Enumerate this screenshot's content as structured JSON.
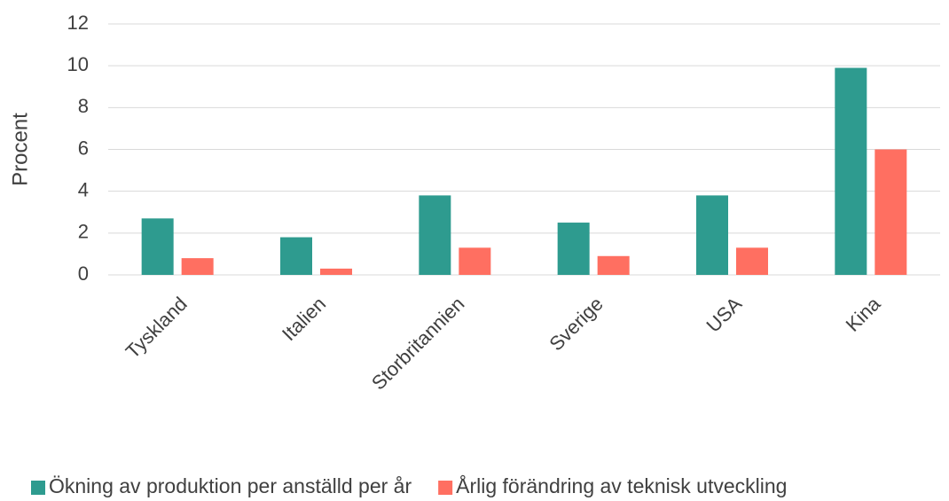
{
  "chart_data": {
    "type": "bar",
    "y_label": "Procent",
    "categories": [
      "Tyskland",
      "Italien",
      "Storbritannien",
      "Sverige",
      "USA",
      "Kina"
    ],
    "series": [
      {
        "name": "Ökning av produktion per anställd per år",
        "color": "#2e9b8f",
        "values": [
          2.7,
          1.8,
          3.8,
          2.5,
          3.8,
          9.9
        ]
      },
      {
        "name": "Årlig förändring av teknisk utveckling",
        "color": "#ff6f61",
        "values": [
          0.8,
          0.3,
          1.3,
          0.9,
          1.3,
          6.0
        ]
      }
    ],
    "ylim": [
      0,
      12
    ],
    "yticks": [
      0,
      2,
      4,
      6,
      8,
      10,
      12
    ],
    "grid": true,
    "legend": "bottom"
  }
}
